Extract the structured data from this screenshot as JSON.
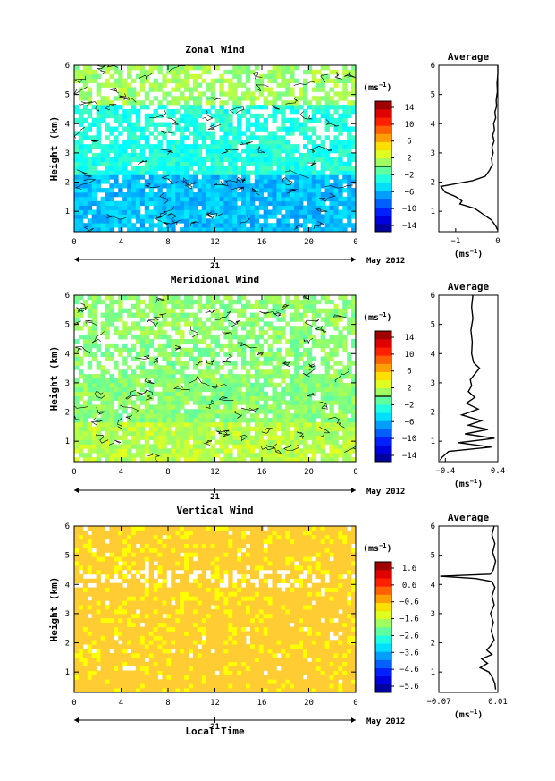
{
  "chart_data": [
    {
      "type": "heatmap",
      "title": "Zonal Wind",
      "ylabel": "Height (km)",
      "xlabel": "",
      "x_ticks": [
        "0",
        "4",
        "8",
        "12",
        "16",
        "20",
        "0"
      ],
      "y_ticks": [
        "1",
        "2",
        "3",
        "4",
        "5",
        "6"
      ],
      "xlim": [
        0,
        24
      ],
      "ylim": [
        0.3,
        6
      ],
      "date_day": "21",
      "date_month_year": "May 2012",
      "colorbar": {
        "unit": "(ms",
        "unit_exp": "−1",
        "unit_close": ")",
        "ticks": [
          "14",
          "10",
          "6",
          "2",
          "−2",
          "−6",
          "−10",
          "−14"
        ],
        "range": [
          -16,
          16
        ]
      },
      "field": {
        "base": -3,
        "low_level": -6,
        "low_level_top": 2.2,
        "upper": 1
      },
      "average_profile": {
        "title": "Average",
        "unit": "(ms",
        "unit_exp": "−1",
        "unit_close": ")",
        "x_ticks": [
          "−1",
          "0"
        ],
        "xlim": [
          -1.4,
          0
        ],
        "y_ticks": [
          "1",
          "2",
          "3",
          "4",
          "5",
          "6"
        ],
        "points": [
          [
            0.0,
            6.0
          ],
          [
            0.0,
            5.7
          ],
          [
            -0.02,
            5.4
          ],
          [
            -0.01,
            5.1
          ],
          [
            -0.04,
            4.8
          ],
          [
            -0.03,
            4.6
          ],
          [
            -0.07,
            4.4
          ],
          [
            -0.05,
            4.2
          ],
          [
            -0.1,
            4.0
          ],
          [
            -0.08,
            3.8
          ],
          [
            -0.12,
            3.6
          ],
          [
            -0.09,
            3.4
          ],
          [
            -0.14,
            3.2
          ],
          [
            -0.11,
            3.0
          ],
          [
            -0.15,
            2.8
          ],
          [
            -0.13,
            2.6
          ],
          [
            -0.2,
            2.4
          ],
          [
            -0.3,
            2.2
          ],
          [
            -0.6,
            2.05
          ],
          [
            -1.35,
            1.85
          ],
          [
            -1.25,
            1.65
          ],
          [
            -1.0,
            1.5
          ],
          [
            -0.85,
            1.35
          ],
          [
            -0.9,
            1.25
          ],
          [
            -0.55,
            1.1
          ],
          [
            -0.35,
            0.9
          ],
          [
            -0.15,
            0.7
          ],
          [
            -0.05,
            0.5
          ],
          [
            0.0,
            0.35
          ]
        ]
      }
    },
    {
      "type": "heatmap",
      "title": "Meridional Wind",
      "ylabel": "Height (km)",
      "xlabel": "",
      "x_ticks": [
        "0",
        "4",
        "8",
        "12",
        "16",
        "20",
        "0"
      ],
      "y_ticks": [
        "1",
        "2",
        "3",
        "4",
        "5",
        "6"
      ],
      "xlim": [
        0,
        24
      ],
      "ylim": [
        0.3,
        6
      ],
      "date_day": "21",
      "date_month_year": "May 2012",
      "colorbar": {
        "unit": "(ms",
        "unit_exp": "−1",
        "unit_close": ")",
        "ticks": [
          "14",
          "10",
          "6",
          "2",
          "−2",
          "−6",
          "−10",
          "−14"
        ],
        "range": [
          -16,
          16
        ]
      },
      "field": {
        "base": 0.3,
        "low_level": 1.8,
        "low_level_top": 1.6,
        "upper": 0.6
      },
      "average_profile": {
        "title": "Average",
        "unit": "(ms",
        "unit_exp": "−1",
        "unit_close": ")",
        "x_ticks": [
          "−0.4",
          "0.4"
        ],
        "xlim": [
          -0.5,
          0.4
        ],
        "y_ticks": [
          "1",
          "2",
          "3",
          "4",
          "5",
          "6"
        ],
        "points": [
          [
            0.02,
            6.0
          ],
          [
            0.0,
            5.6
          ],
          [
            0.02,
            5.2
          ],
          [
            -0.01,
            4.8
          ],
          [
            0.01,
            4.4
          ],
          [
            0.0,
            4.0
          ],
          [
            0.03,
            3.7
          ],
          [
            0.12,
            3.5
          ],
          [
            0.05,
            3.3
          ],
          [
            -0.02,
            3.1
          ],
          [
            0.0,
            2.9
          ],
          [
            -0.05,
            2.7
          ],
          [
            0.05,
            2.5
          ],
          [
            -0.08,
            2.3
          ],
          [
            0.1,
            2.1
          ],
          [
            -0.15,
            1.9
          ],
          [
            0.15,
            1.7
          ],
          [
            -0.05,
            1.55
          ],
          [
            0.25,
            1.4
          ],
          [
            -0.1,
            1.25
          ],
          [
            0.35,
            1.1
          ],
          [
            -0.2,
            0.95
          ],
          [
            0.3,
            0.8
          ],
          [
            -0.35,
            0.65
          ],
          [
            -0.45,
            0.45
          ],
          [
            -0.48,
            0.35
          ]
        ]
      }
    },
    {
      "type": "heatmap",
      "title": "Vertical Wind",
      "ylabel": "Height (km)",
      "xlabel": "Local Time",
      "x_ticks": [
        "0",
        "4",
        "8",
        "12",
        "16",
        "20",
        "0"
      ],
      "y_ticks": [
        "1",
        "2",
        "3",
        "4",
        "5",
        "6"
      ],
      "xlim": [
        0,
        24
      ],
      "ylim": [
        0.3,
        6
      ],
      "date_day": "21",
      "date_month_year": "May 2012",
      "colorbar": {
        "unit": "(ms",
        "unit_exp": "−1",
        "unit_close": ")",
        "ticks": [
          "1.6",
          "0.6",
          "−0.6",
          "−1.6",
          "−2.6",
          "−3.6",
          "−4.6",
          "−5.6"
        ],
        "range": [
          -6,
          2
        ]
      },
      "field": {
        "base": 0.3,
        "low_level": 0.1,
        "low_level_top": 1.5,
        "upper": 0.3
      },
      "average_profile": {
        "title": "Average",
        "unit": "(ms",
        "unit_exp": "−1",
        "unit_close": ")",
        "x_ticks": [
          "−0.07",
          "0.01"
        ],
        "xlim": [
          -0.07,
          0.01
        ],
        "y_ticks": [
          "1",
          "2",
          "3",
          "4",
          "5",
          "6"
        ],
        "points": [
          [
            0.005,
            6.0
          ],
          [
            0.002,
            5.7
          ],
          [
            0.006,
            5.4
          ],
          [
            0.003,
            5.1
          ],
          [
            0.007,
            4.8
          ],
          [
            0.004,
            4.5
          ],
          [
            0.0,
            4.35
          ],
          [
            -0.068,
            4.28
          ],
          [
            -0.02,
            4.2
          ],
          [
            0.002,
            4.1
          ],
          [
            0.006,
            3.9
          ],
          [
            0.002,
            3.6
          ],
          [
            0.005,
            3.3
          ],
          [
            0.0,
            3.0
          ],
          [
            0.004,
            2.7
          ],
          [
            0.001,
            2.4
          ],
          [
            0.005,
            2.1
          ],
          [
            0.0,
            1.9
          ],
          [
            -0.005,
            1.75
          ],
          [
            0.002,
            1.6
          ],
          [
            -0.012,
            1.45
          ],
          [
            -0.004,
            1.3
          ],
          [
            -0.014,
            1.15
          ],
          [
            -0.002,
            1.0
          ],
          [
            0.003,
            0.8
          ],
          [
            0.006,
            0.6
          ],
          [
            0.007,
            0.4
          ]
        ]
      }
    }
  ]
}
